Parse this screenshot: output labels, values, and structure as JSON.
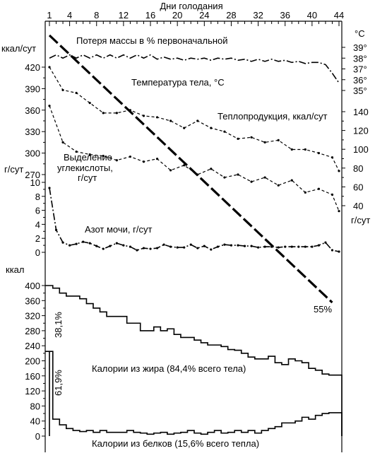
{
  "chart_data": {
    "type": "line",
    "title": "Дни голодания",
    "x_axis": {
      "label": "Дни голодания",
      "ticks": [
        "1",
        "4",
        "8",
        "12",
        "16",
        "20",
        "24",
        "28",
        "32",
        "36",
        "40",
        "44"
      ],
      "range": [
        1,
        44
      ]
    },
    "left_axes": {
      "kcal_day": {
        "unit": "ккал/сут",
        "ticks": [
          "420",
          "390",
          "360",
          "330",
          "300",
          "270"
        ],
        "range": [
          252,
          450
        ]
      },
      "g_day": {
        "unit": "г/сут",
        "ticks": [
          "10",
          "8",
          "6",
          "4",
          "2",
          "0"
        ],
        "range": [
          -0.4,
          10
        ]
      },
      "kcal": {
        "unit": "ккал",
        "ticks": [
          "400",
          "360",
          "320",
          "280",
          "240",
          "200",
          "160",
          "120",
          "80",
          "40",
          "0"
        ],
        "range": [
          0,
          400
        ]
      }
    },
    "right_axes": {
      "temperature": {
        "unit": "°C",
        "ticks": [
          "39°",
          "38°",
          "37°",
          "36°",
          "35°"
        ],
        "range": [
          34.5,
          39.5
        ]
      },
      "heat_production": {
        "unit": "г/сут",
        "ticks": [
          "140",
          "120",
          "100",
          "80",
          "60",
          "40"
        ],
        "range": [
          40,
          145
        ]
      }
    },
    "annotations": {
      "mass_loss": "Потеря массы в % первоначальной",
      "temperature": "Температура тела, °С",
      "heat_production": "Теплопродукция, ккал/сут",
      "co2_line1": "Выделение",
      "co2_line2": "углекислоты,",
      "co2_line3": "г/сут",
      "nitrogen": "Азот мочи, г/сут",
      "mass_loss_end": "55%",
      "fat_pct": "38,1%",
      "protein_pct": "61,9%",
      "fat_calories": "Калории из жира (84,4% всего тела)",
      "protein_calories": "Калории из белков (15,6% всего тепла)"
    },
    "series": [
      {
        "name": "Потеря массы в % первоначальной",
        "axis": "mass",
        "style": "dashed-thick",
        "x": [
          1,
          43
        ],
        "values": [
          0,
          55
        ]
      },
      {
        "name": "Температура тела, °С",
        "axis": "temperature",
        "style": "dash-dot",
        "x": [
          1,
          2,
          3,
          4,
          5,
          6,
          7,
          8,
          9,
          10,
          11,
          12,
          13,
          14,
          15,
          16,
          17,
          18,
          19,
          20,
          21,
          22,
          23,
          24,
          25,
          26,
          27,
          28,
          29,
          30,
          31,
          32,
          33,
          34,
          35,
          36,
          37,
          38,
          39,
          40,
          41,
          42,
          43,
          44
        ],
        "values": [
          38.0,
          38.3,
          38.0,
          38.3,
          38.0,
          38.3,
          38.0,
          38.3,
          38.0,
          38.3,
          38.0,
          38.3,
          38.0,
          38.3,
          38.0,
          38.3,
          37.9,
          38.1,
          37.9,
          38.0,
          37.8,
          38.0,
          37.9,
          38.0,
          37.8,
          38.0,
          37.9,
          38.0,
          37.8,
          37.9,
          37.7,
          37.9,
          37.7,
          37.9,
          37.7,
          37.8,
          37.6,
          37.7,
          37.5,
          37.6,
          37.6,
          37.4,
          36.6,
          35.7
        ]
      },
      {
        "name": "Теплопродукция, ккал/сут",
        "axis": "kcal_day",
        "style": "dotted",
        "x": [
          1,
          3,
          5,
          7,
          9,
          11,
          13,
          15,
          17,
          19,
          21,
          23,
          25,
          27,
          29,
          31,
          33,
          35,
          37,
          39,
          41,
          43,
          44
        ],
        "values": [
          420,
          388,
          384,
          370,
          356,
          356,
          360,
          352,
          350,
          345,
          335,
          345,
          335,
          330,
          320,
          322,
          315,
          318,
          305,
          305,
          300,
          294,
          275
        ]
      },
      {
        "name": "Выделение углекислоты, г/сут",
        "axis": "kcal_day",
        "style": "dotted",
        "x": [
          1,
          3,
          5,
          7,
          9,
          11,
          13,
          15,
          17,
          19,
          21,
          23,
          25,
          27,
          29,
          31,
          33,
          35,
          37,
          39,
          41,
          43,
          44
        ],
        "values": [
          366,
          315,
          302,
          298,
          296,
          290,
          295,
          288,
          292,
          276,
          283,
          270,
          278,
          266,
          270,
          260,
          266,
          255,
          262,
          245,
          250,
          242,
          219
        ]
      },
      {
        "name": "Азот мочи, г/сут",
        "axis": "g_day",
        "style": "dash-dot",
        "x": [
          1,
          2,
          3,
          4,
          5,
          6,
          7,
          8,
          9,
          10,
          11,
          12,
          13,
          14,
          15,
          16,
          17,
          18,
          19,
          20,
          21,
          22,
          23,
          24,
          25,
          26,
          27,
          28,
          29,
          30,
          31,
          32,
          33,
          34,
          35,
          36,
          37,
          38,
          39,
          40,
          41,
          42,
          43,
          44
        ],
        "values": [
          9.2,
          3.2,
          1.4,
          1.0,
          1.2,
          1.5,
          1.3,
          0.9,
          0.5,
          0.9,
          1.3,
          1.0,
          0.8,
          0.3,
          0.6,
          0.5,
          0.6,
          1.1,
          0.8,
          0.7,
          0.7,
          1.1,
          0.6,
          0.9,
          0.4,
          0.8,
          1.1,
          1.0,
          1.0,
          0.9,
          0.9,
          0.7,
          0.8,
          0.8,
          0.7,
          0.8,
          0.8,
          0.8,
          0.8,
          0.8,
          1.0,
          1.4,
          0.3,
          0.1
        ]
      },
      {
        "name": "Калории из жира (84,4% всего тела)",
        "axis": "kcal",
        "style": "step",
        "x": [
          1,
          2,
          3,
          4,
          5,
          6,
          7,
          8,
          9,
          10,
          11,
          12,
          13,
          14,
          15,
          16,
          17,
          18,
          19,
          20,
          21,
          22,
          23,
          24,
          25,
          26,
          27,
          28,
          29,
          30,
          31,
          32,
          33,
          34,
          35,
          36,
          37,
          38,
          39,
          40,
          41,
          42,
          43,
          44
        ],
        "values": [
          400,
          393,
          380,
          372,
          372,
          365,
          352,
          340,
          330,
          318,
          318,
          318,
          300,
          300,
          280,
          280,
          290,
          280,
          285,
          270,
          262,
          262,
          255,
          248,
          242,
          242,
          238,
          230,
          228,
          220,
          210,
          205,
          205,
          212,
          195,
          190,
          205,
          200,
          195,
          180,
          175,
          165,
          162,
          162
        ]
      },
      {
        "name": "Калории из белков (15,6% всего тепла)",
        "axis": "kcal",
        "style": "step",
        "x": [
          1,
          2,
          3,
          4,
          5,
          6,
          7,
          8,
          9,
          10,
          11,
          12,
          13,
          14,
          15,
          16,
          17,
          18,
          19,
          20,
          21,
          22,
          23,
          24,
          25,
          26,
          27,
          28,
          29,
          30,
          31,
          32,
          33,
          34,
          35,
          36,
          37,
          38,
          39,
          40,
          41,
          42,
          43,
          44
        ],
        "values": [
          225,
          45,
          30,
          20,
          15,
          12,
          15,
          10,
          15,
          10,
          10,
          10,
          15,
          10,
          8,
          5,
          8,
          10,
          5,
          8,
          10,
          15,
          8,
          5,
          10,
          15,
          8,
          10,
          15,
          10,
          15,
          8,
          15,
          20,
          25,
          35,
          35,
          40,
          50,
          45,
          55,
          60,
          62,
          62
        ]
      }
    ]
  }
}
